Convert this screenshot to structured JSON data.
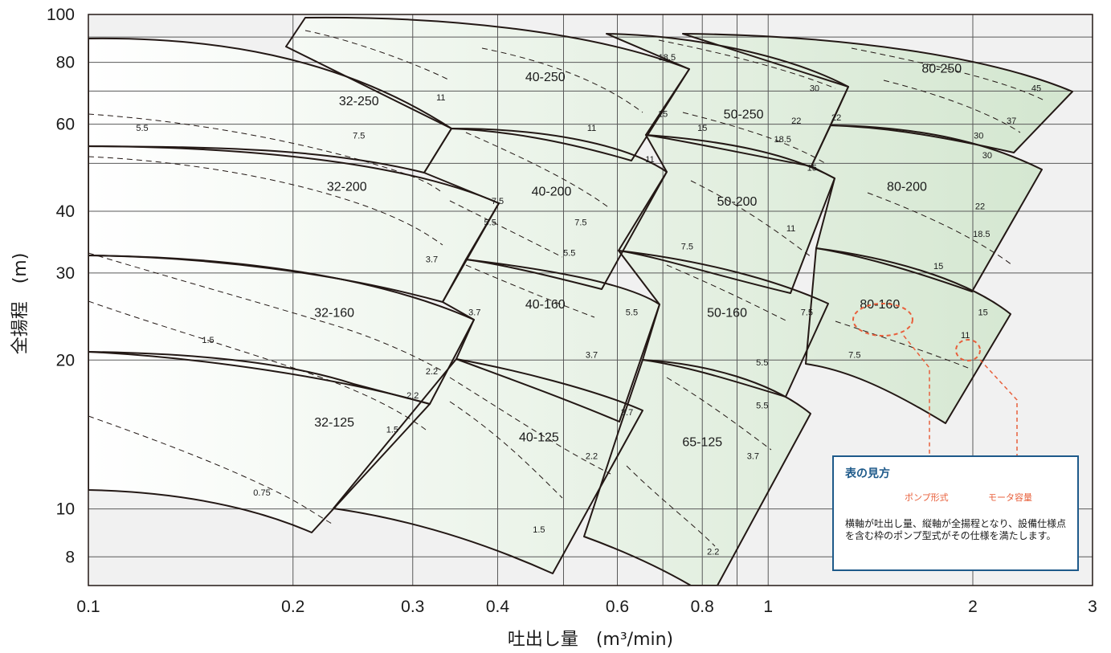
{
  "chart_data": {
    "type": "line",
    "xlabel": "吐出し量　(m³/min)",
    "ylabel": "全揚程　(m)",
    "xscale": "log",
    "yscale": "log",
    "xlim": [
      0.1,
      3
    ],
    "ylim": [
      7,
      100
    ],
    "x_ticks": [
      "0.1",
      "0.2",
      "0.3",
      "0.4",
      "0.6",
      "0.8",
      "1",
      "2",
      "3"
    ],
    "y_ticks": [
      "8",
      "10",
      "20",
      "30",
      "40",
      "60",
      "80",
      "100"
    ],
    "grid": true,
    "regions": [
      {
        "name": "32-250",
        "label_at": [
          0.25,
          67
        ]
      },
      {
        "name": "32-200",
        "label_at": [
          0.24,
          45
        ]
      },
      {
        "name": "32-160",
        "label_at": [
          0.23,
          25
        ]
      },
      {
        "name": "32-125",
        "label_at": [
          0.23,
          15
        ]
      },
      {
        "name": "40-250",
        "label_at": [
          0.47,
          75
        ]
      },
      {
        "name": "40-200",
        "label_at": [
          0.48,
          44
        ]
      },
      {
        "name": "40-160",
        "label_at": [
          0.47,
          26
        ]
      },
      {
        "name": "40-125",
        "label_at": [
          0.46,
          14
        ]
      },
      {
        "name": "50-250",
        "label_at": [
          0.92,
          63
        ]
      },
      {
        "name": "50-200",
        "label_at": [
          0.9,
          42
        ]
      },
      {
        "name": "50-160",
        "label_at": [
          0.87,
          25
        ]
      },
      {
        "name": "65-125",
        "label_at": [
          0.8,
          13.7
        ]
      },
      {
        "name": "80-250",
        "label_at": [
          1.8,
          78
        ]
      },
      {
        "name": "80-200",
        "label_at": [
          1.6,
          45
        ]
      },
      {
        "name": "80-160",
        "label_at": [
          1.46,
          26
        ]
      }
    ],
    "motor_labels": [
      {
        "text": "11",
        "at": [
          0.33,
          68
        ]
      },
      {
        "text": "7.5",
        "at": [
          0.25,
          57
        ]
      },
      {
        "text": "5.5",
        "at": [
          0.12,
          59
        ]
      },
      {
        "text": "18.5",
        "at": [
          0.71,
          82
        ]
      },
      {
        "text": "15",
        "at": [
          0.7,
          63
        ]
      },
      {
        "text": "11",
        "at": [
          0.55,
          59
        ]
      },
      {
        "text": "30",
        "at": [
          1.17,
          71
        ]
      },
      {
        "text": "22",
        "at": [
          1.1,
          61
        ]
      },
      {
        "text": "18.5",
        "at": [
          1.05,
          56
        ]
      },
      {
        "text": "15",
        "at": [
          0.8,
          59
        ]
      },
      {
        "text": "45",
        "at": [
          2.48,
          71
        ]
      },
      {
        "text": "37",
        "at": [
          2.28,
          61
        ]
      },
      {
        "text": "30",
        "at": [
          2.04,
          57
        ]
      },
      {
        "text": "22",
        "at": [
          1.26,
          62
        ]
      },
      {
        "text": "11",
        "at": [
          0.67,
          51
        ]
      },
      {
        "text": "7.5",
        "at": [
          0.4,
          42
        ]
      },
      {
        "text": "5.5",
        "at": [
          0.39,
          38
        ]
      },
      {
        "text": "3.7",
        "at": [
          0.32,
          32
        ]
      },
      {
        "text": "15",
        "at": [
          1.16,
          49
        ]
      },
      {
        "text": "30",
        "at": [
          2.1,
          52
        ]
      },
      {
        "text": "7.5",
        "at": [
          0.53,
          38
        ]
      },
      {
        "text": "22",
        "at": [
          2.05,
          41
        ]
      },
      {
        "text": "18.5",
        "at": [
          2.06,
          36
        ]
      },
      {
        "text": "11",
        "at": [
          1.08,
          37
        ]
      },
      {
        "text": "5.5",
        "at": [
          0.51,
          33
        ]
      },
      {
        "text": "7.5",
        "at": [
          0.76,
          34
        ]
      },
      {
        "text": "15",
        "at": [
          1.78,
          31
        ]
      },
      {
        "text": "1.5",
        "at": [
          0.15,
          22
        ]
      },
      {
        "text": "3.7",
        "at": [
          0.37,
          25
        ]
      },
      {
        "text": "5.5",
        "at": [
          0.63,
          25
        ]
      },
      {
        "text": "7.5",
        "at": [
          1.14,
          25
        ]
      },
      {
        "text": "15",
        "at": [
          2.07,
          25
        ]
      },
      {
        "text": "2.2",
        "at": [
          0.32,
          19
        ]
      },
      {
        "text": "2.2",
        "at": [
          0.3,
          17
        ]
      },
      {
        "text": "1.5",
        "at": [
          0.28,
          14.5
        ]
      },
      {
        "text": "3.7",
        "at": [
          0.55,
          20.5
        ]
      },
      {
        "text": "5.5",
        "at": [
          0.98,
          19.8
        ]
      },
      {
        "text": "11",
        "at": [
          1.95,
          22.5
        ]
      },
      {
        "text": "7.5",
        "at": [
          1.34,
          20.5
        ]
      },
      {
        "text": "3.7",
        "at": [
          0.62,
          15.7
        ]
      },
      {
        "text": "5.5",
        "at": [
          0.98,
          16.2
        ]
      },
      {
        "text": "2.2",
        "at": [
          0.55,
          12.8
        ]
      },
      {
        "text": "3.7",
        "at": [
          0.95,
          12.8
        ]
      },
      {
        "text": "0.75",
        "at": [
          0.18,
          10.8
        ]
      },
      {
        "text": "1.5",
        "at": [
          0.46,
          9.1
        ]
      },
      {
        "text": "2.2",
        "at": [
          0.83,
          8.2
        ]
      }
    ]
  },
  "legend": {
    "title": "表の見方",
    "pump_type_label": "ポンプ形式",
    "motor_capacity_label": "モータ容量",
    "description": "横軸が吐出し量、縦軸が全揚程となり、設備仕様点を含む枠のポンプ型式がその仕様を満たします。"
  },
  "colors": {
    "region_fill_start": "#ffffff",
    "region_fill_end": "#d3e6cf",
    "region_stroke": "#231815",
    "grid": "#5a5a5a",
    "plot_bg": "#f1f1f1",
    "accent": "#e8603c",
    "legend_border": "#1e5a8a"
  }
}
